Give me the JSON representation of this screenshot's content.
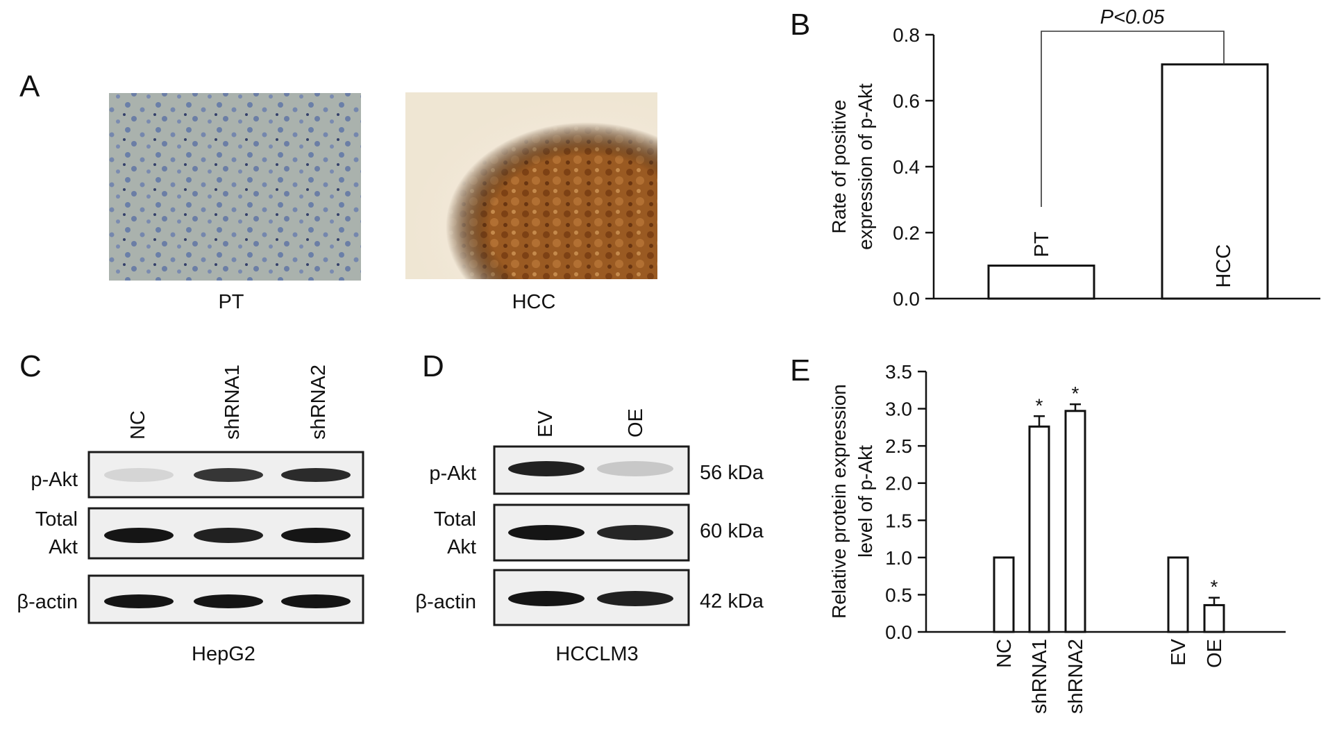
{
  "panel_letters": {
    "a": "A",
    "b": "B",
    "c": "C",
    "d": "D",
    "e": "E"
  },
  "panel_a": {
    "left_label": "PT",
    "right_label": "HCC"
  },
  "panel_c": {
    "cell_line": "HepG2",
    "lanes": [
      "NC",
      "shRNA1",
      "shRNA2"
    ],
    "row_labels": {
      "pakt": "p-Akt",
      "total_1": "Total",
      "total_2": "Akt",
      "actin": "β-actin"
    },
    "band_intensity": {
      "pakt": [
        0.12,
        0.85,
        0.9
      ],
      "total": [
        1,
        0.95,
        1
      ],
      "actin": [
        1,
        1,
        1
      ]
    }
  },
  "panel_d": {
    "cell_line": "HCCLM3",
    "lanes": [
      "EV",
      "OE"
    ],
    "row_labels": {
      "pakt": "p-Akt",
      "total_1": "Total",
      "total_2": "Akt",
      "actin": "β-actin"
    },
    "kda": {
      "pakt": "56 kDa",
      "total": "60 kDa",
      "actin": "42 kDa"
    },
    "band_intensity": {
      "pakt": [
        0.95,
        0.18
      ],
      "total": [
        1,
        0.92
      ],
      "actin": [
        1,
        0.95
      ]
    }
  },
  "chart_data": [
    {
      "type": "bar",
      "panel": "B",
      "categories": [
        "PT",
        "HCC"
      ],
      "values": [
        0.1,
        0.71
      ],
      "ylabel_line1": "Rate of positive",
      "ylabel_line2": "expression of p-Akt",
      "ylim": [
        0,
        0.8
      ],
      "yticks": [
        "0.0",
        "0.2",
        "0.4",
        "0.6",
        "0.8"
      ],
      "significance": "P<0.05",
      "grid": false
    },
    {
      "type": "bar",
      "panel": "E",
      "categories": [
        "NC",
        "shRNA1",
        "shRNA2",
        "EV",
        "OE"
      ],
      "values": [
        1.0,
        2.76,
        2.97,
        1.0,
        0.36
      ],
      "errors": [
        0,
        0.14,
        0.09,
        0,
        0.1
      ],
      "significant": [
        false,
        true,
        true,
        false,
        true
      ],
      "star": "*",
      "ylabel_line1": "Relative protein expression",
      "ylabel_line2": "level of p-Akt",
      "ylim": [
        0,
        3.5
      ],
      "yticks": [
        "0.0",
        "0.5",
        "1.0",
        "1.5",
        "2.0",
        "2.5",
        "3.0",
        "3.5"
      ],
      "grid": false
    }
  ]
}
